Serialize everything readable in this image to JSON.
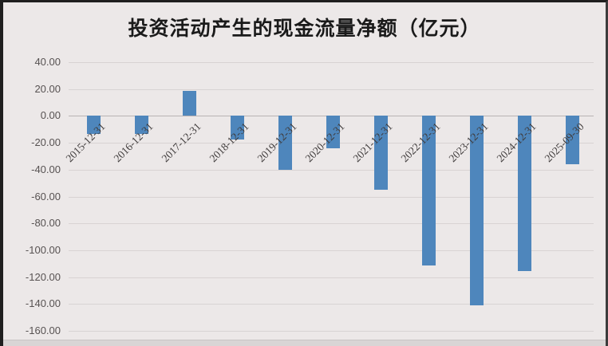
{
  "chart_data": {
    "type": "bar",
    "title": "投资活动产生的现金流量净额（亿元）",
    "categories": [
      "2015-12-31",
      "2016-12-31",
      "2017-12-31",
      "2018-12-31",
      "2019-12-31",
      "2020-12-31",
      "2021-12-31",
      "2022-12-31",
      "2023-12-31",
      "2024-12-31",
      "2025-09-30"
    ],
    "values": [
      -13.7,
      -13.3,
      18.5,
      -17.6,
      -40.1,
      -24.0,
      -55.0,
      -111.2,
      -141.3,
      -115.2,
      -36.0
    ],
    "xlabel": "",
    "ylabel": "",
    "ylim": [
      -160,
      40
    ],
    "yticks": [
      {
        "value": 40,
        "label": "40.00"
      },
      {
        "value": 20,
        "label": "20.00"
      },
      {
        "value": 0,
        "label": "0.00"
      },
      {
        "value": -20,
        "label": "-20.00"
      },
      {
        "value": -40,
        "label": "-40.00"
      },
      {
        "value": -60,
        "label": "-60.00"
      },
      {
        "value": -80,
        "label": "-80.00"
      },
      {
        "value": -100,
        "label": "-100.00"
      },
      {
        "value": -120,
        "label": "-120.00"
      },
      {
        "value": -140,
        "label": "-140.00"
      },
      {
        "value": -160,
        "label": "-160.00"
      }
    ],
    "grid": true,
    "legend": false,
    "bar_color": "#4e86bc",
    "background_color": "#ece8e8",
    "title_color": "#1a1a1a",
    "axis_text_color": "#575252"
  }
}
